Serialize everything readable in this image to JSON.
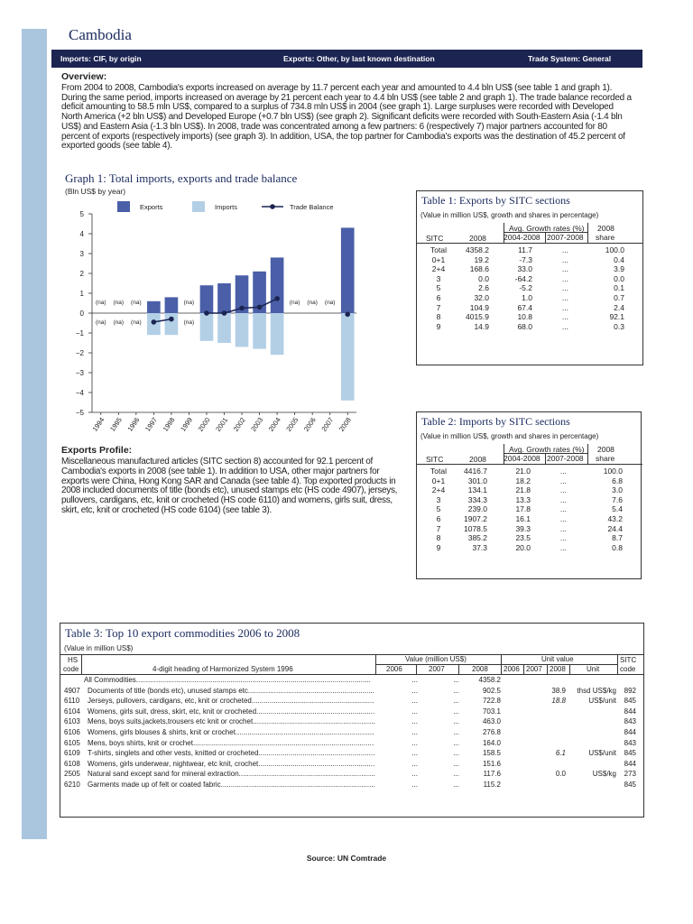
{
  "country": "Cambodia",
  "header_bar": {
    "imports": "Imports: CIF, by origin",
    "exports": "Exports: Other, by last known destination",
    "trade_system": "Trade System: General"
  },
  "overview": {
    "title": "Overview:",
    "text": "From 2004 to 2008, Cambodia's exports increased on average by 11.7 percent each year and amounted to 4.4 bln US$ (see table 1 and graph 1). During the same period, imports increased on average by 21 percent each year to 4.4 bln US$ (see table 2 and graph 1). The trade balance recorded a deficit amounting to 58.5 mln US$, compared to a surplus of 734.8 mln US$ in 2004 (see graph 1). Large surpluses were recorded with Developed North America (+2 bln US$) and Developed Europe (+0.7 bln US$) (see graph 2). Significant deficits were recorded with South-Eastern Asia (-1.4 bln US$) and Eastern Asia (-1.3 bln US$). In 2008, trade was concentrated among a few partners: 6 (respectively 7) major partners accounted for 80 percent of exports (respectively imports) (see graph 3). In addition, USA, the top partner for Cambodia's exports was the destination of 45.2 percent of exported goods (see table 4)."
  },
  "graph1": {
    "title": "Graph 1: Total imports, exports and trade balance",
    "unit": "(Bln US$ by year)",
    "na_label": "(na)"
  },
  "chart_data": {
    "type": "bar",
    "categories": [
      "1994",
      "1995",
      "1996",
      "1997",
      "1998",
      "1999",
      "2000",
      "2001",
      "2002",
      "2003",
      "2004",
      "2005",
      "2006",
      "2007",
      "2008"
    ],
    "series": [
      {
        "name": "Exports",
        "values": [
          null,
          null,
          null,
          0.6,
          0.8,
          null,
          1.4,
          1.5,
          1.9,
          2.1,
          2.8,
          null,
          null,
          null,
          4.3
        ]
      },
      {
        "name": "Imports",
        "values": [
          null,
          null,
          null,
          -1.1,
          -1.1,
          null,
          -1.4,
          -1.5,
          -1.7,
          -1.8,
          -2.1,
          null,
          null,
          null,
          -4.4
        ]
      },
      {
        "name": "Trade Balance",
        "values": [
          null,
          null,
          null,
          -0.45,
          -0.3,
          null,
          0.0,
          0.0,
          0.25,
          0.3,
          0.73,
          null,
          null,
          null,
          -0.06
        ]
      }
    ],
    "na_exports": [
      "1994",
      "1995",
      "1996",
      "1999",
      "2005",
      "2006",
      "2007"
    ],
    "na_imports": [
      "1994",
      "1995",
      "1996",
      "1999"
    ],
    "ylim": [
      -5,
      5
    ],
    "yticks": [
      5,
      4,
      3,
      2,
      1,
      0,
      -1,
      -2,
      -3,
      -4,
      -5
    ],
    "legend": "top",
    "colors": {
      "exports": "#4a5fa8",
      "imports": "#b3cfe6",
      "balance": "#1c2452"
    }
  },
  "exports_profile": {
    "title": "Exports Profile:",
    "text": "Miscellaneous manufactured articles (SITC section 8) accounted for 92.1 percent of Cambodia's exports in 2008 (see table 1). In addition to USA, other major partners for exports were China, Hong Kong SAR and Canada (see table 4). Top exported products in 2008 included documents of title (bonds etc), unused stamps etc (HS code 4907), jerseys, pullovers, cardigans, etc, knit or crocheted (HS code 6110) and womens, girls suit, dress, skirt, etc, knit or crocheted (HS code 6104) (see table 3)."
  },
  "table1": {
    "title": "Table 1: Exports by SITC sections",
    "unit": "(Value in million US$, growth and shares in percentage)",
    "headers": {
      "sitc": "SITC",
      "year": "2008",
      "growth": "Avg. Growth rates (%)",
      "g1": "2004-2008",
      "g2": "2007-2008",
      "share1": "2008",
      "share2": "share"
    },
    "rows": [
      [
        "Total",
        "4358.2",
        "11.7",
        "...",
        "100.0"
      ],
      [
        "0+1",
        "19.2",
        "-7.3",
        "...",
        "0.4"
      ],
      [
        "2+4",
        "168.6",
        "33.0",
        "...",
        "3.9"
      ],
      [
        "3",
        "0.0",
        "-64.2",
        "...",
        "0.0"
      ],
      [
        "5",
        "2.6",
        "-5.2",
        "...",
        "0.1"
      ],
      [
        "6",
        "32.0",
        "1.0",
        "...",
        "0.7"
      ],
      [
        "7",
        "104.9",
        "67.4",
        "...",
        "2.4"
      ],
      [
        "8",
        "4015.9",
        "10.8",
        "...",
        "92.1"
      ],
      [
        "9",
        "14.9",
        "68.0",
        "...",
        "0.3"
      ]
    ]
  },
  "table2": {
    "title": "Table 2: Imports by SITC sections",
    "unit": "(Value in million US$, growth and shares in percentage)",
    "headers": {
      "sitc": "SITC",
      "year": "2008",
      "growth": "Avg. Growth rates (%)",
      "g1": "2004-2008",
      "g2": "2007-2008",
      "share1": "2008",
      "share2": "share"
    },
    "rows": [
      [
        "Total",
        "4416.7",
        "21.0",
        "...",
        "100.0"
      ],
      [
        "0+1",
        "301.0",
        "18.2",
        "...",
        "6.8"
      ],
      [
        "2+4",
        "134.1",
        "21.8",
        "...",
        "3.0"
      ],
      [
        "3",
        "334.3",
        "13.3",
        "...",
        "7.6"
      ],
      [
        "5",
        "239.0",
        "17.8",
        "...",
        "5.4"
      ],
      [
        "6",
        "1907.2",
        "16.1",
        "...",
        "43.2"
      ],
      [
        "7",
        "1078.5",
        "39.3",
        "...",
        "24.4"
      ],
      [
        "8",
        "385.2",
        "23.5",
        "...",
        "8.7"
      ],
      [
        "9",
        "37.3",
        "20.0",
        "...",
        "0.8"
      ]
    ]
  },
  "table3": {
    "title": "Table 3: Top 10 export commodities 2006 to 2008",
    "unit": "(Value in million US$)",
    "headers": {
      "hs1": "HS",
      "hs2": "code",
      "heading": "4-digit heading of Harmonized System 1996",
      "value": "Value (million US$)",
      "v2006": "2006",
      "v2007": "2007",
      "v2008": "2008",
      "unit_value": "Unit value",
      "u2006": "2006",
      "u2007": "2007",
      "u2008": "2008",
      "unit": "Unit",
      "sitc1": "SITC",
      "sitc2": "code"
    },
    "rows": [
      {
        "code": "",
        "desc": "All Commodities",
        "v06": "...",
        "v07": "...",
        "v08": "4358.2",
        "uv08": "",
        "unit": "",
        "sitc": ""
      },
      {
        "code": "4907",
        "desc": "Documents of title (bonds etc), unused stamps etc",
        "v06": "...",
        "v07": "...",
        "v08": "902.5",
        "uv08": "38.9",
        "unit": "thsd US$/kg",
        "sitc": "892"
      },
      {
        "code": "6110",
        "desc": "Jerseys, pullovers, cardigans, etc, knit or crocheted",
        "v06": "...",
        "v07": "...",
        "v08": "722.8",
        "uv08": "18.8",
        "unit": "US$/unit",
        "sitc": "845"
      },
      {
        "code": "6104",
        "desc": "Womens, girls suit, dress, skirt, etc, knit or crocheted",
        "v06": "...",
        "v07": "...",
        "v08": "703.1",
        "uv08": "",
        "unit": "",
        "sitc": "844"
      },
      {
        "code": "6103",
        "desc": "Mens, boys suits,jackets,trousers etc knit or crochet",
        "v06": "...",
        "v07": "...",
        "v08": "463.0",
        "uv08": "",
        "unit": "",
        "sitc": "843"
      },
      {
        "code": "6106",
        "desc": "Womens, girls blouses & shirts, knit or crochet",
        "v06": "...",
        "v07": "...",
        "v08": "276.8",
        "uv08": "",
        "unit": "",
        "sitc": "844"
      },
      {
        "code": "6105",
        "desc": "Mens, boys shirts, knit or crochet",
        "v06": "...",
        "v07": "...",
        "v08": "164.0",
        "uv08": "",
        "unit": "",
        "sitc": "843"
      },
      {
        "code": "6109",
        "desc": "T-shirts, singlets and other vests, knitted or crocheted",
        "v06": "...",
        "v07": "...",
        "v08": "158.5",
        "uv08": "6.1",
        "unit": "US$/unit",
        "sitc": "845"
      },
      {
        "code": "6108",
        "desc": "Womens, girls underwear, nightwear, etc knit, crochet",
        "v06": "...",
        "v07": "...",
        "v08": "151.6",
        "uv08": "",
        "unit": "",
        "sitc": "844"
      },
      {
        "code": "2505",
        "desc": "Natural sand except sand for mineral extraction",
        "v06": "...",
        "v07": "...",
        "v08": "117.6",
        "uv08": "0.0",
        "unit": "US$/kg",
        "sitc": "273"
      },
      {
        "code": "6210",
        "desc": "Garments made up of felt or coated fabric",
        "v06": "...",
        "v07": "...",
        "v08": "115.2",
        "uv08": "",
        "unit": "",
        "sitc": "845"
      }
    ]
  },
  "source": "Source: UN Comtrade"
}
